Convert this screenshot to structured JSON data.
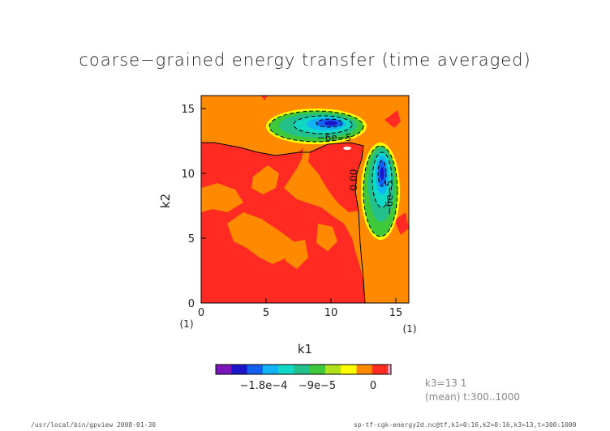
{
  "chart_data": {
    "type": "heatmap",
    "title": "coarse−grained energy transfer (time averaged)",
    "xlabel": "k1",
    "ylabel": "k2",
    "x_unit": "(1)",
    "y_unit": "(1)",
    "xlim": [
      0,
      16
    ],
    "ylim": [
      0,
      16
    ],
    "x_ticks": [
      "0",
      "5",
      "10",
      "15"
    ],
    "y_ticks": [
      "0",
      "5",
      "10",
      "15"
    ],
    "contour_labels": [
      "−6e−5",
      "−6e−5",
      "0.00"
    ],
    "colorbar": {
      "colors": [
        "#7a16b8",
        "#1b14c8",
        "#1460f0",
        "#10b4f4",
        "#10d8c4",
        "#22c08a",
        "#3ec83a",
        "#b2e11c",
        "#ffff00",
        "#ff8a00",
        "#ff2a22",
        "#ff99b4"
      ],
      "tick_labels": [
        "−1.8e−4",
        "−9e−5",
        "0"
      ]
    },
    "features": [
      {
        "name": "negative blob top",
        "center": [
          10,
          14
        ],
        "min": -0.00018
      },
      {
        "name": "negative blob right",
        "center": [
          14,
          10
        ],
        "min": -0.00018
      }
    ]
  },
  "notes": {
    "k3": "k3=13  1",
    "mean": "(mean)  t:300..1000"
  },
  "footer": {
    "left": "/usr/local/bin/gpview  2008-01-30",
    "right": "sp-tf-cgk-energy2d.nc@tf,k1=0:16,k2=0:16,k3=13,t=300:1000"
  }
}
